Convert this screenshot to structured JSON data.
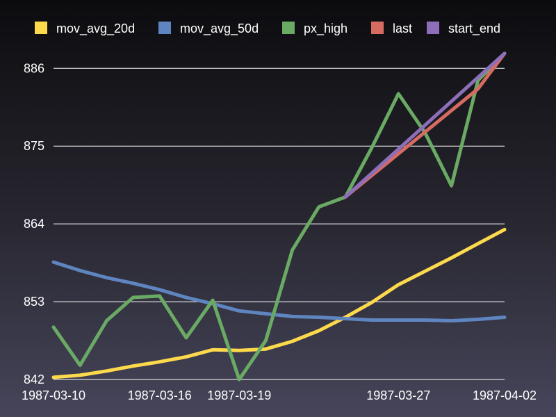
{
  "chart_data": {
    "type": "line",
    "title": "",
    "xlabel": "",
    "ylabel": "",
    "ylim": [
      842,
      887.5
    ],
    "yticks": [
      842,
      853,
      864,
      875,
      886
    ],
    "ytick_labels": [
      "842",
      "853",
      "864",
      "875",
      "886"
    ],
    "grid": "horizontal",
    "legend_position": "top",
    "x": [
      "1987-03-10",
      "1987-03-11",
      "1987-03-12",
      "1987-03-13",
      "1987-03-16",
      "1987-03-17",
      "1987-03-18",
      "1987-03-19",
      "1987-03-20",
      "1987-03-23",
      "1987-03-24",
      "1987-03-25",
      "1987-03-26",
      "1987-03-27",
      "1987-03-30",
      "1987-03-31",
      "1987-04-01",
      "1987-04-02"
    ],
    "xtick_labels": [
      {
        "label": "1987-03-10",
        "index": 0
      },
      {
        "label": "1987-03-16",
        "index": 4
      },
      {
        "label": "1987-03-19",
        "index": 7
      },
      {
        "label": "1987-03-27",
        "index": 13
      },
      {
        "label": "1987-04-02",
        "index": 17
      }
    ],
    "series": [
      {
        "name": "mov_avg_20d",
        "color": "#fdd94c",
        "values": [
          842.3,
          842.6,
          843.2,
          843.9,
          844.5,
          845.2,
          846.2,
          846.1,
          846.3,
          847.4,
          848.9,
          850.8,
          852.9,
          855.4,
          857.3,
          859.2,
          861.2,
          863.2
        ]
      },
      {
        "name": "mov_avg_50d",
        "color": "#5f85c0",
        "values": [
          858.6,
          857.4,
          856.4,
          855.6,
          854.7,
          853.6,
          852.7,
          851.7,
          851.3,
          850.9,
          850.8,
          850.6,
          850.4,
          850.4,
          850.4,
          850.3,
          850.5,
          850.8
        ]
      },
      {
        "name": "px_high",
        "color": "#6aaa64",
        "values": [
          849.4,
          844.0,
          850.3,
          853.6,
          853.8,
          847.9,
          853.2,
          842.0,
          847.5,
          860.3,
          866.4,
          867.8,
          874.8,
          882.4,
          876.9,
          869.4,
          884.3,
          888.1
        ]
      },
      {
        "name": "last",
        "color": "#d66b62",
        "values": [
          null,
          null,
          null,
          null,
          null,
          null,
          null,
          null,
          null,
          null,
          null,
          867.8,
          null,
          null,
          null,
          null,
          883.1,
          888.1
        ]
      },
      {
        "name": "start_end",
        "color": "#8d6fb9",
        "values": [
          null,
          null,
          null,
          null,
          null,
          null,
          null,
          null,
          null,
          null,
          null,
          867.8,
          null,
          null,
          null,
          null,
          null,
          888.1
        ]
      }
    ]
  }
}
